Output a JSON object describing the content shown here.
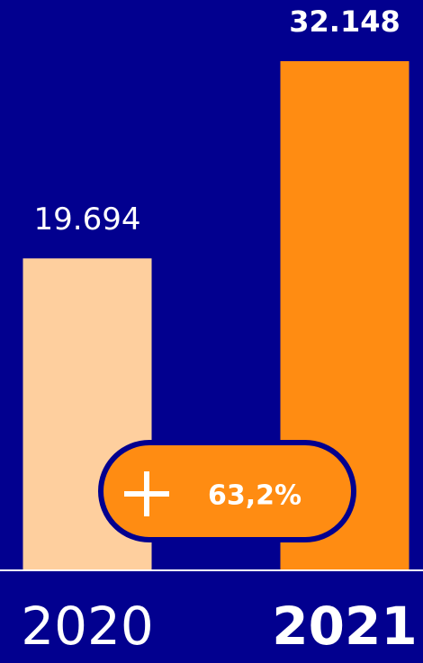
{
  "chart_data": {
    "type": "bar",
    "categories": [
      "2020",
      "2021"
    ],
    "values": [
      19694,
      32148
    ],
    "value_labels": [
      "19.694",
      "32.148"
    ],
    "colors": [
      "#fecf9e",
      "#ff8c12"
    ],
    "highlight": 1,
    "annotation": "63,2%"
  }
}
